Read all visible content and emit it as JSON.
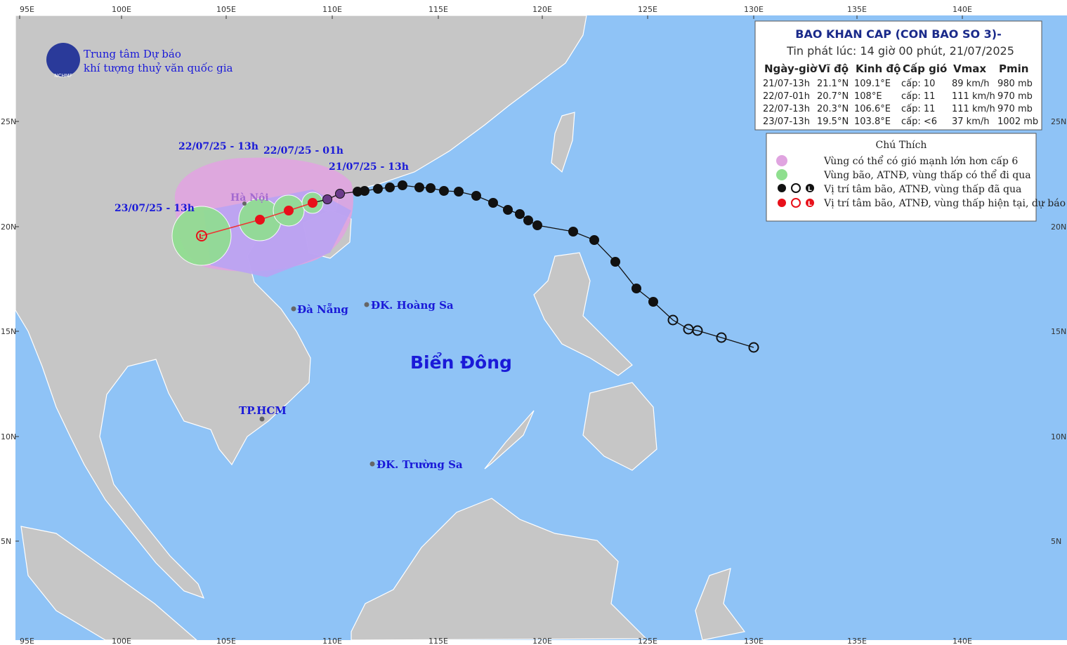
{
  "header": {
    "org_line1": "Trung tâm Dự báo",
    "org_line2": "khí tượng thuỷ văn quốc gia",
    "logo_text": "NCHMF"
  },
  "bulletin": {
    "title": "BAO KHAN CAP (CON BAO SO 3)-",
    "issued": "Tin phát lúc: 14 giờ 00 phút, 21/07/2025",
    "table": {
      "columns": [
        "Ngày-giờ",
        "Vĩ độ",
        "Kinh độ",
        "Cấp gió",
        "Vmax",
        "Pmin"
      ],
      "rows": [
        [
          "21/07-13h",
          "21.1°N",
          "109.1°E",
          "cấp: 10",
          "89 km/h",
          "980 mb"
        ],
        [
          "22/07-01h",
          "20.7°N",
          "108°E",
          "cấp: 11",
          "111 km/h",
          "970 mb"
        ],
        [
          "22/07-13h",
          "20.3°N",
          "106.6°E",
          "cấp: 11",
          "111 km/h",
          "970 mb"
        ],
        [
          "23/07-13h",
          "19.5°N",
          "103.8°E",
          "cấp: <6",
          "37 km/h",
          "1002 mb"
        ]
      ]
    }
  },
  "legend": {
    "title": "Chú Thích",
    "low_symbol": "L",
    "items": [
      "Vùng có thể có gió mạnh lớn hơn cấp 6",
      "Vùng bão, ATNĐ, vùng thấp có thể đi qua",
      "Vị trí tâm bão, ATNĐ, vùng thấp đã qua",
      "Vị trí tâm bão, ATNĐ, vùng thấp hiện tại, dự báo"
    ]
  },
  "forecast_times": [
    "21/07/25 - 13h",
    "22/07/25 - 01h",
    "22/07/25 - 13h",
    "23/07/25 - 13h"
  ],
  "places": [
    "Hà Nội",
    "Đà Nẵng",
    "ĐK. Hoàng Sa",
    "TP.HCM",
    "ĐK. Trường Sa"
  ],
  "sea": "Biển Đông",
  "lon_labels": [
    "95E",
    "100E",
    "105E",
    "110E",
    "115E",
    "120E",
    "125E",
    "130E",
    "135E",
    "140E"
  ],
  "lat_labels": [
    "25N",
    "20N",
    "15N",
    "10N",
    "5N"
  ]
}
